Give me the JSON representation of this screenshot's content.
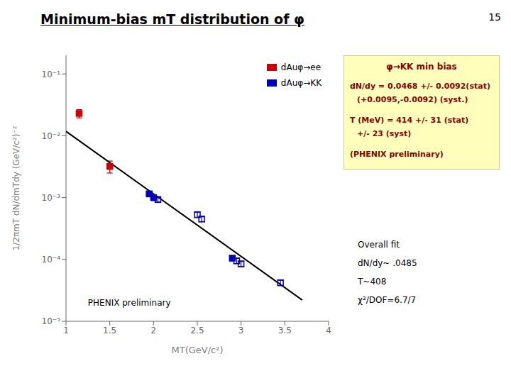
{
  "chart_data": {
    "type": "scatter",
    "title": "Minimum-bias mT distribution of φ",
    "slide_number": "15",
    "x_label": "MT(GeV/c²)",
    "y_label": "1/2πmT dN/dmTdy (GeV/c²)⁻²",
    "xlim": [
      1.0,
      4.0
    ],
    "xticks": [
      1,
      1.5,
      2,
      2.5,
      3,
      3.5,
      4
    ],
    "ylim": [
      1e-05,
      0.2
    ],
    "yticks": [
      {
        "value": 1e-05,
        "label": "10⁻⁵"
      },
      {
        "value": 0.0001,
        "label": "10⁻⁴"
      },
      {
        "value": 0.001,
        "label": "10⁻³"
      },
      {
        "value": 0.01,
        "label": "10⁻²"
      },
      {
        "value": 0.1,
        "label": "10⁻¹"
      }
    ],
    "log": "y",
    "grid": false,
    "legend": "upper right",
    "series": [
      {
        "type": "line",
        "color": "#000000",
        "x": [
          1.0,
          3.7
        ],
        "values": [
          0.0118,
          2.2e-05
        ]
      },
      {
        "type": "scatter",
        "name": "dAuφ→ee",
        "color": "#cc0000",
        "marker": "square",
        "x": [
          1.15,
          1.5
        ],
        "values": [
          0.023,
          0.0032
        ],
        "yerr": [
          0.0035,
          0.0007
        ]
      },
      {
        "type": "scatter",
        "color": "#0000bb",
        "marker": "square",
        "x": [
          1.95,
          2.0,
          2.9
        ],
        "values": [
          0.00115,
          0.001,
          0.000105
        ],
        "yerr_lo": [
          0.00012,
          0.0001,
          1e-05
        ],
        "yerr_hi": [
          0.00012,
          0.0001,
          1e-05
        ]
      },
      {
        "type": "scatter",
        "name": "dAuφ→KK",
        "color": "#0000bb",
        "marker": "square_open",
        "x": [
          2.05,
          2.5,
          2.55,
          2.95,
          3.0,
          3.45
        ],
        "values": [
          0.00093,
          0.00053,
          0.00045,
          9.5e-05,
          8.5e-05,
          4.2e-05
        ],
        "yerr": [
          8e-05,
          5e-05,
          4e-05,
          9e-06,
          8e-06,
          4e-06
        ]
      }
    ],
    "annotations": [
      {
        "text": "PHENIX preliminary",
        "x": 1.25,
        "y": 1.8e-05
      }
    ],
    "info_box": {
      "color": "#880000",
      "background": "#ffffbb",
      "lines": [
        "φ→KK min bias",
        "dN/dy = 0.0468 +/- 0.0092(stat)",
        "(+0.0095,-0.0092) (syst.)",
        "T (MeV) = 414 +/- 31 (stat)",
        "+/- 23 (syst)",
        "(PHENIX preliminary)"
      ]
    },
    "overall_fit": [
      "Overall fit",
      "dN/dy~ .0485",
      "T~408",
      "χ²/DOF=6.7/7"
    ]
  }
}
